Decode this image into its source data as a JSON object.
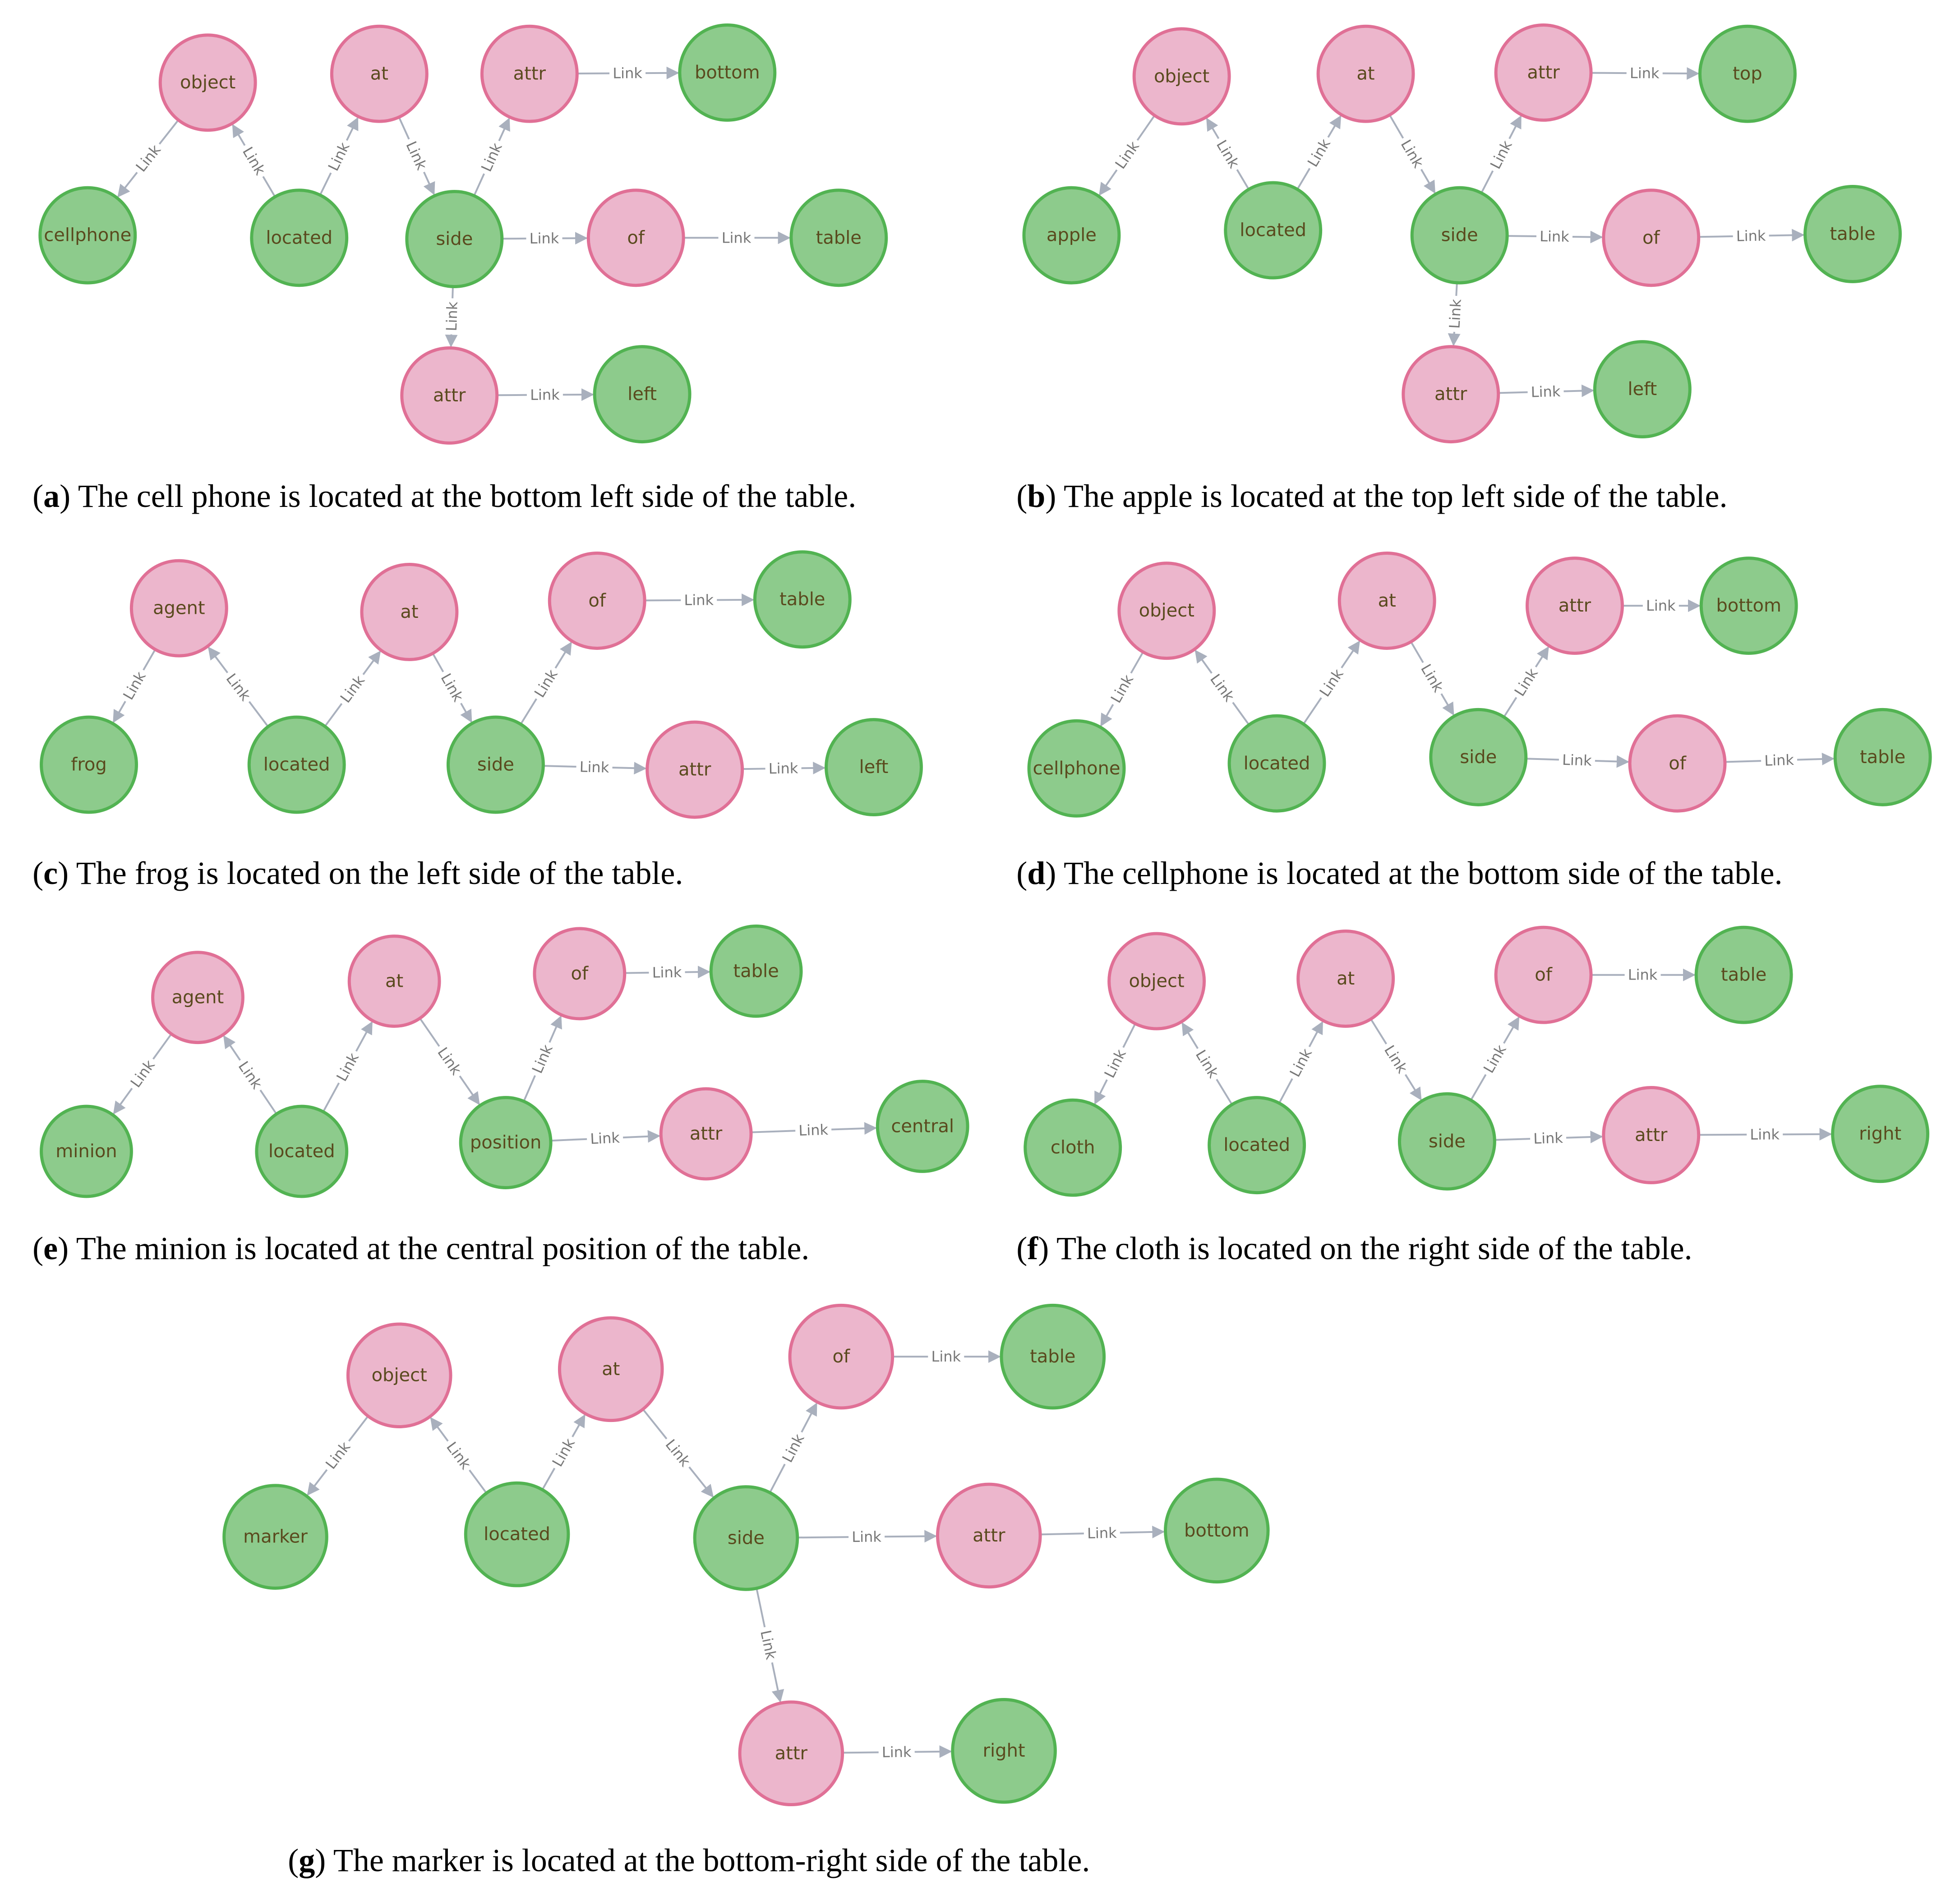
{
  "colors": {
    "object_fill": "#ecb6cc",
    "object_stroke": "#e07096",
    "attribute_fill": "#8dcb8c",
    "attribute_stroke": "#52b352",
    "edge": "#a9b0bd",
    "edge_label": "#777777",
    "node_text": "#5a4a1e"
  },
  "edge_label": "Link",
  "panels": [
    {
      "letter": "a",
      "caption": "The cell phone is located at the bottom left side of the table.",
      "nodes": [
        {
          "id": "object",
          "label": "object",
          "kind": "pink"
        },
        {
          "id": "cellphone",
          "label": "cellphone",
          "kind": "green"
        },
        {
          "id": "located",
          "label": "located",
          "kind": "green"
        },
        {
          "id": "at",
          "label": "at",
          "kind": "pink"
        },
        {
          "id": "side",
          "label": "side",
          "kind": "green"
        },
        {
          "id": "attr1",
          "label": "attr",
          "kind": "pink"
        },
        {
          "id": "bottom",
          "label": "bottom",
          "kind": "green"
        },
        {
          "id": "of",
          "label": "of",
          "kind": "pink"
        },
        {
          "id": "table",
          "label": "table",
          "kind": "green"
        },
        {
          "id": "attr2",
          "label": "attr",
          "kind": "pink"
        },
        {
          "id": "left",
          "label": "left",
          "kind": "green"
        }
      ],
      "edges": [
        {
          "from": "object",
          "to": "cellphone"
        },
        {
          "from": "located",
          "to": "object"
        },
        {
          "from": "located",
          "to": "at"
        },
        {
          "from": "at",
          "to": "side"
        },
        {
          "from": "side",
          "to": "attr1"
        },
        {
          "from": "attr1",
          "to": "bottom"
        },
        {
          "from": "side",
          "to": "of"
        },
        {
          "from": "of",
          "to": "table"
        },
        {
          "from": "side",
          "to": "attr2"
        },
        {
          "from": "attr2",
          "to": "left"
        }
      ]
    },
    {
      "letter": "b",
      "caption": "The apple is located at the top left side of the table.",
      "nodes": [
        {
          "id": "object",
          "label": "object",
          "kind": "pink"
        },
        {
          "id": "apple",
          "label": "apple",
          "kind": "green"
        },
        {
          "id": "located",
          "label": "located",
          "kind": "green"
        },
        {
          "id": "at",
          "label": "at",
          "kind": "pink"
        },
        {
          "id": "side",
          "label": "side",
          "kind": "green"
        },
        {
          "id": "attr1",
          "label": "attr",
          "kind": "pink"
        },
        {
          "id": "top",
          "label": "top",
          "kind": "green"
        },
        {
          "id": "of",
          "label": "of",
          "kind": "pink"
        },
        {
          "id": "table",
          "label": "table",
          "kind": "green"
        },
        {
          "id": "attr2",
          "label": "attr",
          "kind": "pink"
        },
        {
          "id": "left",
          "label": "left",
          "kind": "green"
        }
      ],
      "edges": [
        {
          "from": "object",
          "to": "apple"
        },
        {
          "from": "located",
          "to": "object"
        },
        {
          "from": "located",
          "to": "at"
        },
        {
          "from": "at",
          "to": "side"
        },
        {
          "from": "side",
          "to": "attr1"
        },
        {
          "from": "attr1",
          "to": "top"
        },
        {
          "from": "side",
          "to": "of"
        },
        {
          "from": "of",
          "to": "table"
        },
        {
          "from": "side",
          "to": "attr2"
        },
        {
          "from": "attr2",
          "to": "left"
        }
      ]
    },
    {
      "letter": "c",
      "caption": "The frog is located on the left side of the table.",
      "nodes": [
        {
          "id": "agent",
          "label": "agent",
          "kind": "pink"
        },
        {
          "id": "frog",
          "label": "frog",
          "kind": "green"
        },
        {
          "id": "located",
          "label": "located",
          "kind": "green"
        },
        {
          "id": "at",
          "label": "at",
          "kind": "pink"
        },
        {
          "id": "side",
          "label": "side",
          "kind": "green"
        },
        {
          "id": "of",
          "label": "of",
          "kind": "pink"
        },
        {
          "id": "table",
          "label": "table",
          "kind": "green"
        },
        {
          "id": "attr",
          "label": "attr",
          "kind": "pink"
        },
        {
          "id": "left",
          "label": "left",
          "kind": "green"
        }
      ],
      "edges": [
        {
          "from": "agent",
          "to": "frog"
        },
        {
          "from": "located",
          "to": "agent"
        },
        {
          "from": "located",
          "to": "at"
        },
        {
          "from": "at",
          "to": "side"
        },
        {
          "from": "side",
          "to": "of"
        },
        {
          "from": "of",
          "to": "table"
        },
        {
          "from": "side",
          "to": "attr"
        },
        {
          "from": "attr",
          "to": "left"
        }
      ]
    },
    {
      "letter": "d",
      "caption": "The cellphone is located at the bottom side of the table.",
      "nodes": [
        {
          "id": "object",
          "label": "object",
          "kind": "pink"
        },
        {
          "id": "cellphone",
          "label": "cellphone",
          "kind": "green"
        },
        {
          "id": "located",
          "label": "located",
          "kind": "green"
        },
        {
          "id": "at",
          "label": "at",
          "kind": "pink"
        },
        {
          "id": "side",
          "label": "side",
          "kind": "green"
        },
        {
          "id": "attr",
          "label": "attr",
          "kind": "pink"
        },
        {
          "id": "bottom",
          "label": "bottom",
          "kind": "green"
        },
        {
          "id": "of",
          "label": "of",
          "kind": "pink"
        },
        {
          "id": "table",
          "label": "table",
          "kind": "green"
        }
      ],
      "edges": [
        {
          "from": "object",
          "to": "cellphone"
        },
        {
          "from": "located",
          "to": "object"
        },
        {
          "from": "located",
          "to": "at"
        },
        {
          "from": "at",
          "to": "side"
        },
        {
          "from": "side",
          "to": "attr"
        },
        {
          "from": "attr",
          "to": "bottom"
        },
        {
          "from": "side",
          "to": "of"
        },
        {
          "from": "of",
          "to": "table"
        }
      ]
    },
    {
      "letter": "e",
      "caption": "The minion is located at the central position of the table.",
      "nodes": [
        {
          "id": "agent",
          "label": "agent",
          "kind": "pink"
        },
        {
          "id": "minion",
          "label": "minion",
          "kind": "green"
        },
        {
          "id": "located",
          "label": "located",
          "kind": "green"
        },
        {
          "id": "at",
          "label": "at",
          "kind": "pink"
        },
        {
          "id": "position",
          "label": "position",
          "kind": "green"
        },
        {
          "id": "of",
          "label": "of",
          "kind": "pink"
        },
        {
          "id": "table",
          "label": "table",
          "kind": "green"
        },
        {
          "id": "attr",
          "label": "attr",
          "kind": "pink"
        },
        {
          "id": "central",
          "label": "central",
          "kind": "green"
        }
      ],
      "edges": [
        {
          "from": "agent",
          "to": "minion"
        },
        {
          "from": "located",
          "to": "agent"
        },
        {
          "from": "located",
          "to": "at"
        },
        {
          "from": "at",
          "to": "position"
        },
        {
          "from": "position",
          "to": "of"
        },
        {
          "from": "of",
          "to": "table"
        },
        {
          "from": "position",
          "to": "attr"
        },
        {
          "from": "attr",
          "to": "central"
        }
      ]
    },
    {
      "letter": "f",
      "caption": "The cloth is located on the right side of the table.",
      "nodes": [
        {
          "id": "object",
          "label": "object",
          "kind": "pink"
        },
        {
          "id": "cloth",
          "label": "cloth",
          "kind": "green"
        },
        {
          "id": "located",
          "label": "located",
          "kind": "green"
        },
        {
          "id": "at",
          "label": "at",
          "kind": "pink"
        },
        {
          "id": "side",
          "label": "side",
          "kind": "green"
        },
        {
          "id": "of",
          "label": "of",
          "kind": "pink"
        },
        {
          "id": "table",
          "label": "table",
          "kind": "green"
        },
        {
          "id": "attr",
          "label": "attr",
          "kind": "pink"
        },
        {
          "id": "right",
          "label": "right",
          "kind": "green"
        }
      ],
      "edges": [
        {
          "from": "object",
          "to": "cloth"
        },
        {
          "from": "located",
          "to": "object"
        },
        {
          "from": "located",
          "to": "at"
        },
        {
          "from": "at",
          "to": "side"
        },
        {
          "from": "side",
          "to": "of"
        },
        {
          "from": "of",
          "to": "table"
        },
        {
          "from": "side",
          "to": "attr"
        },
        {
          "from": "attr",
          "to": "right"
        }
      ]
    },
    {
      "letter": "g",
      "caption": "The marker is located at the bottom-right side of the table.",
      "nodes": [
        {
          "id": "object",
          "label": "object",
          "kind": "pink"
        },
        {
          "id": "marker",
          "label": "marker",
          "kind": "green"
        },
        {
          "id": "located",
          "label": "located",
          "kind": "green"
        },
        {
          "id": "at",
          "label": "at",
          "kind": "pink"
        },
        {
          "id": "side",
          "label": "side",
          "kind": "green"
        },
        {
          "id": "of",
          "label": "of",
          "kind": "pink"
        },
        {
          "id": "table",
          "label": "table",
          "kind": "green"
        },
        {
          "id": "attr1",
          "label": "attr",
          "kind": "pink"
        },
        {
          "id": "bottom",
          "label": "bottom",
          "kind": "green"
        },
        {
          "id": "attr2",
          "label": "attr",
          "kind": "pink"
        },
        {
          "id": "right",
          "label": "right",
          "kind": "green"
        }
      ],
      "edges": [
        {
          "from": "object",
          "to": "marker"
        },
        {
          "from": "located",
          "to": "object"
        },
        {
          "from": "located",
          "to": "at"
        },
        {
          "from": "at",
          "to": "side"
        },
        {
          "from": "side",
          "to": "of"
        },
        {
          "from": "of",
          "to": "table"
        },
        {
          "from": "side",
          "to": "attr1"
        },
        {
          "from": "attr1",
          "to": "bottom"
        },
        {
          "from": "side",
          "to": "attr2"
        },
        {
          "from": "attr2",
          "to": "right"
        }
      ]
    }
  ]
}
